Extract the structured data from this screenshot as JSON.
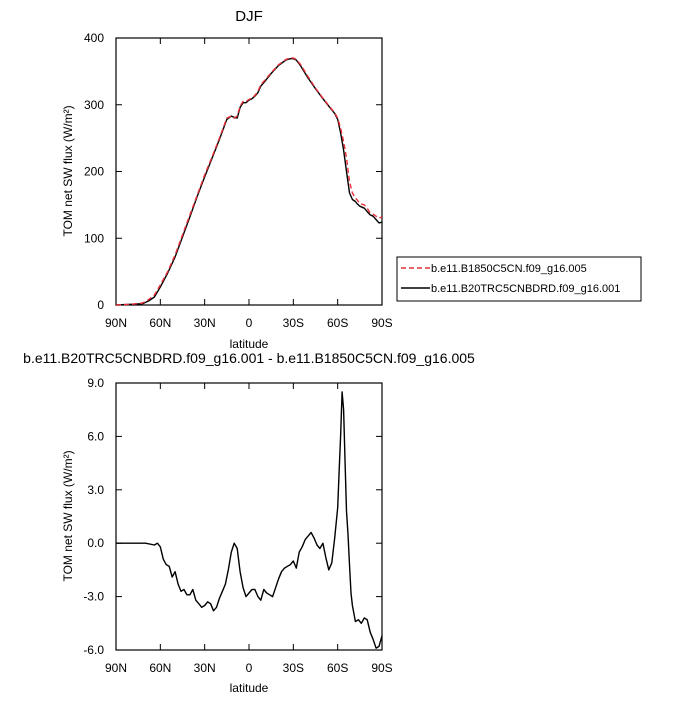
{
  "chart_data": [
    {
      "type": "line",
      "title": "DJF",
      "xlabel": "latitude",
      "ylabel": "TOM net SW flux (W/m²)",
      "xlim": [
        90,
        -90
      ],
      "ylim": [
        0,
        400
      ],
      "x_ticks": [
        90,
        60,
        30,
        0,
        -30,
        -60,
        -90
      ],
      "x_tick_labels": [
        "90N",
        "60N",
        "30N",
        "0",
        "30S",
        "60S",
        "90S"
      ],
      "y_ticks": [
        0,
        100,
        200,
        300,
        400
      ],
      "y_tick_labels": [
        "0",
        "100",
        "200",
        "300",
        "400"
      ],
      "legend_position": "right",
      "series": [
        {
          "name": "b.e11.B1850C5CN.f09_g16.005",
          "color": "#e8303a",
          "dash": "dashed",
          "x": [
            90,
            80,
            72,
            68,
            64,
            60,
            55,
            50,
            45,
            40,
            35,
            30,
            25,
            20,
            15,
            12,
            10,
            8,
            6,
            4,
            2,
            0,
            -2,
            -4,
            -6,
            -8,
            -10,
            -15,
            -20,
            -25,
            -28,
            -30,
            -32,
            -35,
            -40,
            -45,
            -50,
            -55,
            -58,
            -60,
            -62,
            -64,
            -66,
            -68,
            -70,
            -72,
            -73,
            -75,
            -78,
            -80,
            -82,
            -84,
            -86,
            -88,
            -90
          ],
          "y": [
            0,
            1,
            3,
            8,
            15,
            30,
            50,
            75,
            105,
            135,
            165,
            195,
            222,
            250,
            280,
            283,
            280,
            283,
            298,
            305,
            305,
            308,
            310,
            314,
            320,
            330,
            335,
            348,
            360,
            368,
            370,
            370,
            368,
            360,
            342,
            325,
            310,
            296,
            288,
            280,
            265,
            245,
            220,
            185,
            168,
            160,
            158,
            152,
            150,
            145,
            138,
            136,
            133,
            130,
            132
          ]
        },
        {
          "name": "b.e11.B20TRC5CNBDRD.f09_g16.001",
          "color": "#000000",
          "dash": "solid",
          "x": [
            90,
            80,
            72,
            68,
            64,
            60,
            55,
            50,
            45,
            40,
            35,
            30,
            25,
            20,
            15,
            12,
            10,
            8,
            6,
            4,
            2,
            0,
            -2,
            -4,
            -6,
            -8,
            -10,
            -15,
            -20,
            -25,
            -28,
            -30,
            -32,
            -35,
            -40,
            -45,
            -50,
            -55,
            -58,
            -60,
            -62,
            -64,
            -66,
            -68,
            -70,
            -72,
            -73,
            -75,
            -78,
            -80,
            -82,
            -84,
            -86,
            -88,
            -90
          ],
          "y": [
            0,
            1,
            2,
            6,
            12,
            27,
            48,
            72,
            102,
            132,
            163,
            192,
            220,
            248,
            278,
            283,
            281,
            280,
            296,
            303,
            303,
            307,
            309,
            313,
            318,
            328,
            333,
            347,
            359,
            367,
            369,
            369,
            367,
            358,
            340,
            324,
            309,
            295,
            287,
            278,
            258,
            232,
            200,
            168,
            158,
            155,
            152,
            148,
            145,
            140,
            135,
            133,
            128,
            123,
            124
          ]
        }
      ]
    },
    {
      "type": "line",
      "title": "b.e11.B20TRC5CNBDRD.f09_g16.001 - b.e11.B1850C5CN.f09_g16.005",
      "xlabel": "latitude",
      "ylabel": "TOM net SW flux (W/m²)",
      "xlim": [
        90,
        -90
      ],
      "ylim": [
        -6.0,
        9.0
      ],
      "x_ticks": [
        90,
        60,
        30,
        0,
        -30,
        -60,
        -90
      ],
      "x_tick_labels": [
        "90N",
        "60N",
        "30N",
        "0",
        "30S",
        "60S",
        "90S"
      ],
      "y_ticks": [
        -6,
        -3,
        0,
        3,
        6,
        9
      ],
      "y_tick_labels": [
        "-6.0",
        "-3.0",
        "0.0",
        "3.0",
        "6.0",
        "9.0"
      ],
      "series": [
        {
          "color": "#000000",
          "x": [
            90,
            80,
            70,
            64,
            62,
            60,
            58,
            56,
            54,
            52,
            50,
            48,
            46,
            44,
            42,
            40,
            38,
            36,
            34,
            32,
            30,
            28,
            26,
            24,
            22,
            20,
            18,
            16,
            14,
            12,
            10,
            8,
            6,
            4,
            2,
            0,
            -2,
            -4,
            -6,
            -8,
            -10,
            -12,
            -14,
            -16,
            -18,
            -20,
            -22,
            -24,
            -26,
            -28,
            -30,
            -32,
            -34,
            -36,
            -38,
            -40,
            -42,
            -44,
            -46,
            -48,
            -50,
            -52,
            -54,
            -56,
            -58,
            -60,
            -61,
            -62,
            -63,
            -64,
            -65,
            -66,
            -67,
            -68,
            -69,
            -70,
            -72,
            -74,
            -76,
            -78,
            -80,
            -82,
            -84,
            -86,
            -88,
            -90
          ],
          "y": [
            0,
            0,
            0,
            -0.1,
            0,
            -0.2,
            -0.9,
            -1.2,
            -1.3,
            -1.9,
            -1.6,
            -2.3,
            -2.7,
            -2.6,
            -2.9,
            -2.9,
            -2.6,
            -3.2,
            -3.4,
            -3.6,
            -3.5,
            -3.3,
            -3.4,
            -3.8,
            -3.6,
            -3.1,
            -2.7,
            -2.3,
            -1.5,
            -0.5,
            0,
            -0.3,
            -1.6,
            -2.5,
            -3.0,
            -2.8,
            -2.6,
            -2.6,
            -3.0,
            -3.2,
            -2.6,
            -2.8,
            -2.9,
            -3.0,
            -2.5,
            -2.0,
            -1.6,
            -1.4,
            -1.3,
            -1.2,
            -1.0,
            -1.4,
            -0.5,
            -0.2,
            0.2,
            0.4,
            0.6,
            0.3,
            -0.1,
            -0.3,
            0,
            -0.8,
            -1.5,
            -1.1,
            0.3,
            2.0,
            4.0,
            6.0,
            8.5,
            7.5,
            4.5,
            1.8,
            0.5,
            -1.2,
            -2.8,
            -3.5,
            -4.4,
            -4.3,
            -4.5,
            -4.2,
            -4.3,
            -5.0,
            -5.4,
            -5.9,
            -5.8,
            -5.2
          ]
        }
      ]
    }
  ],
  "legend": {
    "items": [
      {
        "label": "b.e11.B1850C5CN.f09_g16.005",
        "color": "#e8303a",
        "dash": "dashed"
      },
      {
        "label": "b.e11.B20TRC5CNBDRD.f09_g16.001",
        "color": "#000000",
        "dash": "solid"
      }
    ]
  }
}
